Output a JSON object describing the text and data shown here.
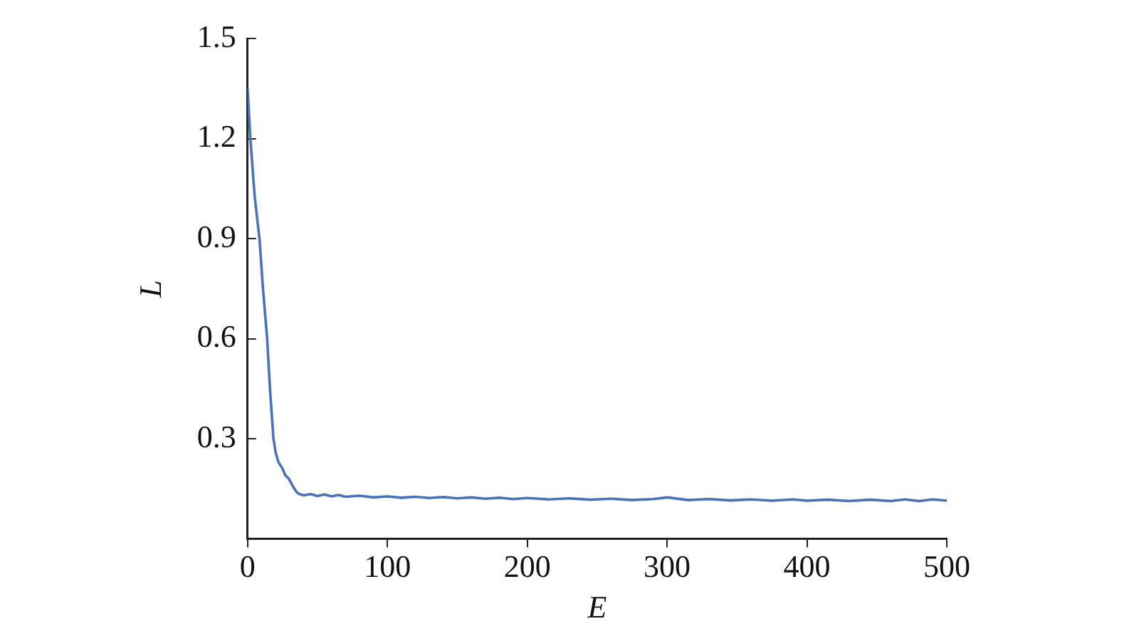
{
  "chart_data": {
    "type": "line",
    "xlabel": "E",
    "ylabel": "L",
    "xlim": [
      0,
      500
    ],
    "ylim": [
      0,
      1.5
    ],
    "xticks": [
      0,
      100,
      200,
      300,
      400,
      500
    ],
    "yticks": [
      {
        "value": 0.3,
        "label": "0.3"
      },
      {
        "value": 0.6,
        "label": "0.6"
      },
      {
        "value": 0.9,
        "label": "0.9"
      },
      {
        "value": 1.2,
        "label": "1.2"
      },
      {
        "value": 1.5,
        "label": "1.5"
      }
    ],
    "grid": false,
    "legend": false,
    "marker": "none",
    "line_style": "solid",
    "series": [
      {
        "color": "#4a72b8",
        "x": [
          0,
          2,
          5,
          8.5,
          11,
          14,
          16,
          18.5,
          20,
          22,
          25,
          27,
          29.5,
          32,
          35,
          37,
          40,
          45,
          50,
          55,
          60,
          65,
          70,
          80,
          90,
          100,
          110,
          120,
          130,
          140,
          150,
          160,
          170,
          180,
          190,
          200,
          215,
          230,
          245,
          260,
          275,
          290,
          300,
          315,
          330,
          345,
          360,
          375,
          390,
          400,
          415,
          430,
          445,
          460,
          470,
          480,
          490,
          500
        ],
        "values": [
          1.35,
          1.2,
          1.03,
          0.9,
          0.75,
          0.6,
          0.45,
          0.3,
          0.26,
          0.23,
          0.21,
          0.19,
          0.18,
          0.16,
          0.14,
          0.134,
          0.13,
          0.134,
          0.128,
          0.133,
          0.127,
          0.131,
          0.126,
          0.129,
          0.124,
          0.127,
          0.123,
          0.126,
          0.122,
          0.125,
          0.121,
          0.124,
          0.12,
          0.123,
          0.119,
          0.122,
          0.118,
          0.121,
          0.117,
          0.12,
          0.116,
          0.119,
          0.124,
          0.116,
          0.119,
          0.115,
          0.118,
          0.114,
          0.118,
          0.114,
          0.117,
          0.113,
          0.117,
          0.113,
          0.118,
          0.113,
          0.118,
          0.114
        ]
      }
    ]
  }
}
